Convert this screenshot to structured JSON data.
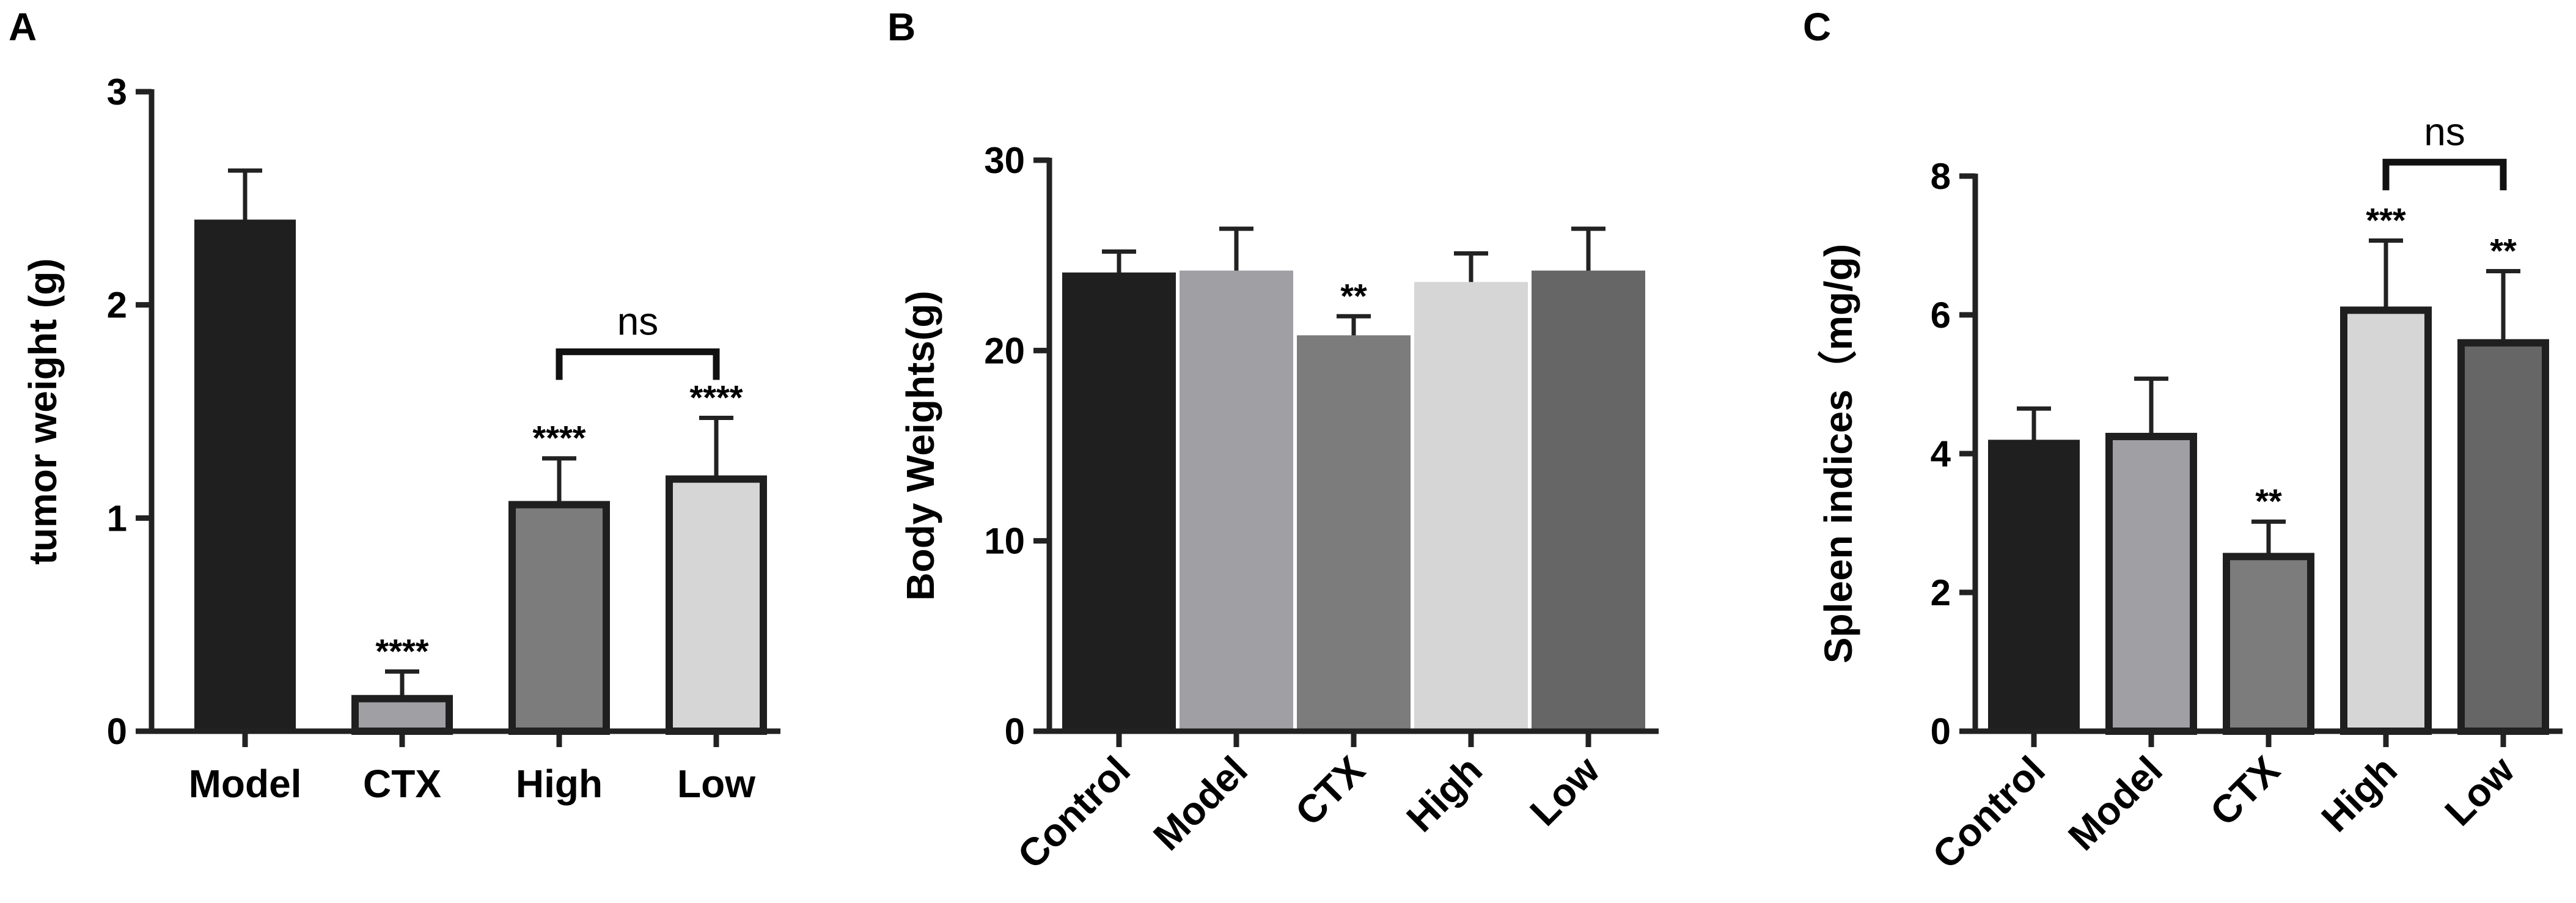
{
  "panels": [
    "A",
    "B",
    "C"
  ],
  "chart_data": [
    {
      "type": "bar",
      "panel": "A",
      "ylabel": "tumor weight (g)",
      "xlabel": "",
      "ylim": [
        0,
        3
      ],
      "yticks": [
        0,
        1,
        2,
        3
      ],
      "categories": [
        "Model",
        "CTX",
        "High",
        "Low"
      ],
      "values": [
        2.4,
        0.17,
        1.08,
        1.2
      ],
      "errors": [
        0.23,
        0.11,
        0.2,
        0.27
      ],
      "colors": [
        "#1f1f1f",
        "#a0a0a4",
        "#7c7c7c",
        "#d6d6d6"
      ],
      "outlined": [
        false,
        true,
        true,
        true
      ],
      "significance": [
        "",
        "****",
        "****",
        "****"
      ],
      "comparison": {
        "from": 2,
        "to": 3,
        "y": 1.78,
        "label": "ns"
      },
      "tick_rotation": 0
    },
    {
      "type": "bar",
      "panel": "B",
      "ylabel": "Body Weights(g)",
      "xlabel": "",
      "ylim": [
        0,
        30
      ],
      "yticks": [
        0,
        10,
        20,
        30
      ],
      "categories": [
        "Control",
        "Model",
        "CTX",
        "High",
        "Low"
      ],
      "values": [
        24.1,
        24.2,
        20.8,
        23.6,
        24.2
      ],
      "errors": [
        1.1,
        2.2,
        1.0,
        1.5,
        2.2
      ],
      "colors": [
        "#1f1f1f",
        "#a0a0a4",
        "#7c7c7c",
        "#d6d6d6",
        "#666666"
      ],
      "outlined": [
        false,
        false,
        false,
        false,
        false
      ],
      "significance": [
        "",
        "",
        "**",
        "",
        ""
      ],
      "comparison": null,
      "tick_rotation": -45
    },
    {
      "type": "bar",
      "panel": "C",
      "ylabel": "Spleen indices（mg/g)",
      "xlabel": "",
      "ylim": [
        0,
        8
      ],
      "yticks": [
        0,
        2,
        4,
        6,
        8
      ],
      "categories": [
        "Control",
        "Model",
        "CTX",
        "High",
        "Low"
      ],
      "values": [
        4.2,
        4.3,
        2.57,
        6.12,
        5.65
      ],
      "errors": [
        0.45,
        0.78,
        0.45,
        0.95,
        0.98
      ],
      "colors": [
        "#1f1f1f",
        "#a0a0a4",
        "#7c7c7c",
        "#d6d6d6",
        "#666666"
      ],
      "outlined": [
        false,
        true,
        true,
        true,
        true
      ],
      "significance": [
        "",
        "",
        "**",
        "***",
        "**"
      ],
      "comparison": {
        "from": 3,
        "to": 4,
        "y": 8.2,
        "label": "ns"
      },
      "tick_rotation": -45
    }
  ]
}
